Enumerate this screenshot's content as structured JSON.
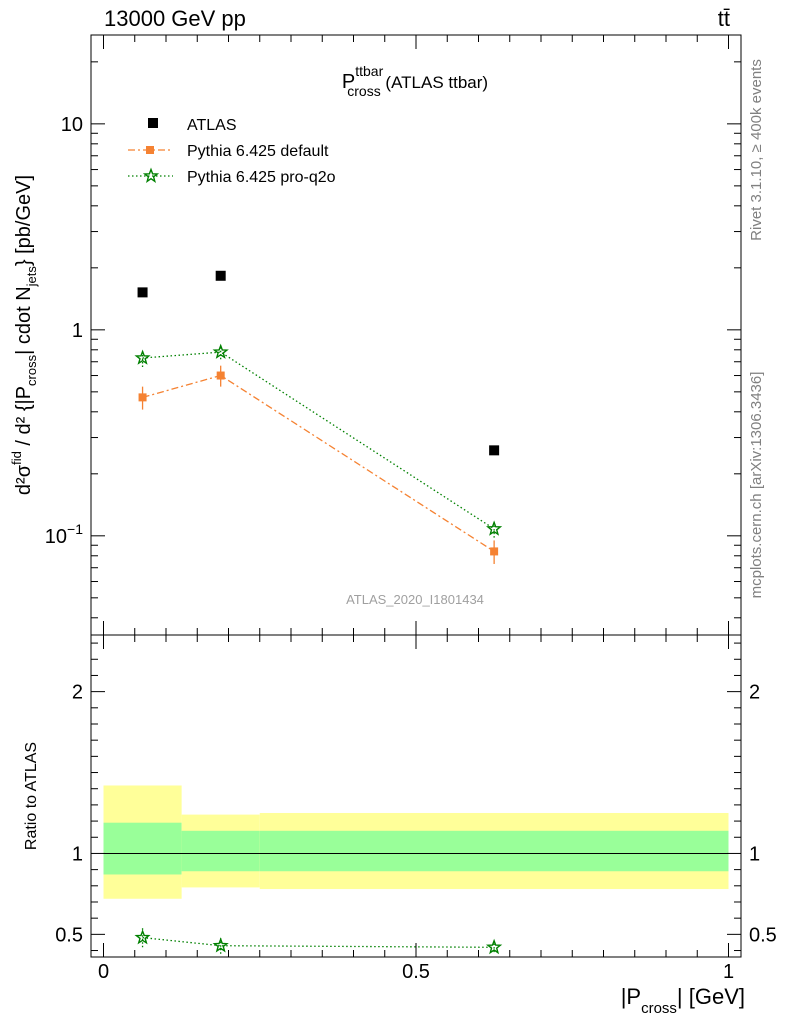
{
  "header": {
    "energy_label": "13000 GeV pp",
    "process_label": "tt̄"
  },
  "side_labels": {
    "rivet": "Rivet 3.1.10, ≥ 400k events",
    "source": "mcplots.cern.ch [arXiv:1306.3436]"
  },
  "plot_title": {
    "main": "P",
    "sup": "ttbar",
    "sub": "cross",
    "suffix": " (ATLAS ttbar)"
  },
  "y_label": "d²σ^fid / d²{|P_cross| cdot N_jets} [pb/GeV]",
  "watermark": "ATLAS_2020_I1801434",
  "x_label": {
    "pre": "|P",
    "sub": "cross",
    "post": "| [GeV]"
  },
  "ratio_ylabel": "Ratio to ATLAS",
  "colors": {
    "data": "#000000",
    "pythia_default": "#f58232",
    "pythia_proq2o": "#008000",
    "band_inner": "#99ff99",
    "band_outer": "#ffff99"
  },
  "chart_data": [
    {
      "type": "scatter",
      "title": "P_cross^ttbar (ATLAS ttbar)",
      "xlabel": "|P_cross| [GeV]",
      "ylabel": "d²σ^fid/d²{|P_cross| cdot N_jets} [pb/GeV]",
      "log_y": true,
      "xlim": [
        -0.02,
        1.02
      ],
      "ylim": [
        0.033,
        27
      ],
      "legend": "top-left",
      "x_ticks": [
        {
          "value": 0,
          "label": "0"
        },
        {
          "value": 0.5,
          "label": "0.5"
        },
        {
          "value": 1,
          "label": "1"
        }
      ],
      "y_ticks": [
        {
          "value": 0.1,
          "base": "10",
          "exp": "−1"
        },
        {
          "value": 1,
          "base": "1",
          "exp": ""
        },
        {
          "value": 10,
          "base": "10",
          "exp": ""
        }
      ],
      "series": [
        {
          "name": "ATLAS",
          "marker": "square",
          "x": [
            0.0625,
            0.1875,
            0.625
          ],
          "y": [
            1.52,
            1.83,
            0.26
          ],
          "err": [
            0.0,
            0.0,
            0.0
          ]
        },
        {
          "name": "Pythia 6.425 default",
          "marker": "square",
          "line": "dashdot",
          "x": [
            0.0625,
            0.1875,
            0.625
          ],
          "y": [
            0.47,
            0.6,
            0.084
          ],
          "err": [
            0.06,
            0.07,
            0.011
          ]
        },
        {
          "name": "Pythia 6.425 pro-q2o",
          "marker": "star",
          "line": "dotted",
          "x": [
            0.0625,
            0.1875,
            0.625
          ],
          "y": [
            0.73,
            0.78,
            0.108
          ],
          "err": [
            0.07,
            0.06,
            0.01
          ]
        }
      ]
    },
    {
      "type": "line",
      "ylabel": "Ratio to ATLAS",
      "xlabel": "|P_cross| [GeV]",
      "xlim": [
        -0.02,
        1.02
      ],
      "ylim": [
        0.36,
        2.35
      ],
      "y_ticks": [
        {
          "value": 0.5,
          "label": "0.5"
        },
        {
          "value": 1,
          "label": "1"
        },
        {
          "value": 2,
          "label": "2"
        }
      ],
      "bins": [
        [
          0,
          0.125
        ],
        [
          0.125,
          0.25
        ],
        [
          0.25,
          1.0
        ]
      ],
      "band_inner": [
        [
          0.87,
          1.19
        ],
        [
          0.89,
          1.14
        ],
        [
          0.89,
          1.14
        ]
      ],
      "band_outer": [
        [
          0.72,
          1.42
        ],
        [
          0.79,
          1.24
        ],
        [
          0.78,
          1.25
        ]
      ],
      "series": [
        {
          "name": "Pythia 6.425 pro-q2o",
          "x": [
            0.0625,
            0.1875,
            0.625
          ],
          "y": [
            0.48,
            0.43,
            0.42
          ],
          "err": [
            0.06,
            0.05,
            0.03
          ]
        }
      ]
    }
  ]
}
